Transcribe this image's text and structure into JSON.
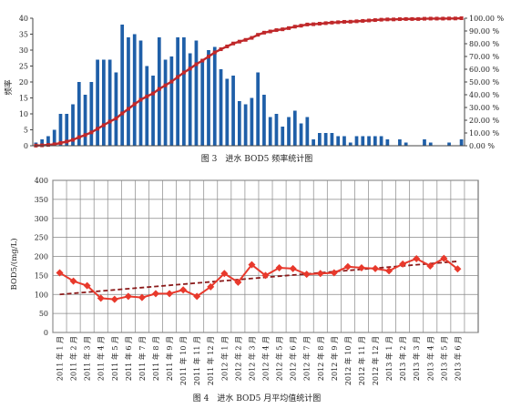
{
  "chart_data": [
    {
      "type": "bar",
      "caption": "图 3　进水 BOD5 频率统计图",
      "ylabel": "频率",
      "ylim": [
        0,
        40
      ],
      "yticks": [
        0,
        5,
        10,
        15,
        20,
        25,
        30,
        35,
        40
      ],
      "y2lim": [
        0,
        100
      ],
      "y2ticks": [
        "0.00 %",
        "10.00 %",
        "20.00 %",
        "30.00 %",
        "40.00 %",
        "50.00 %",
        "60.00 %",
        "70.00 %",
        "80.00 %",
        "90.00 %",
        "100.00 %"
      ],
      "legend": "none",
      "grid": false,
      "colors": {
        "bars": "#1f5fa8",
        "cumulative": "#c0282a"
      },
      "values": [
        1,
        2,
        3,
        5,
        10,
        10,
        13,
        20,
        16,
        20,
        27,
        27,
        27,
        23,
        38,
        34,
        35,
        33,
        25,
        22,
        34,
        27,
        28,
        34,
        34,
        29,
        33,
        27,
        30,
        31,
        24,
        21,
        22,
        14,
        13,
        15,
        23,
        16,
        9,
        10,
        6,
        9,
        11,
        7,
        9,
        2,
        4,
        4,
        4,
        3,
        3,
        1,
        3,
        3,
        3,
        3,
        3,
        2,
        0,
        2,
        1,
        0,
        0,
        2,
        1,
        0,
        0,
        1,
        0,
        2
      ]
    },
    {
      "type": "line",
      "caption": "图 4　进水 BOD5 月平均值统计图",
      "ylabel": "BOD5/(mg/L)",
      "ylim": [
        0,
        400
      ],
      "yticks": [
        0,
        50,
        100,
        150,
        200,
        250,
        300,
        350,
        400
      ],
      "grid": true,
      "legend": "none",
      "colors": {
        "series": "#e8392c",
        "trend": "#8b1a1a"
      },
      "categories": [
        "2011 年 1 月",
        "2011 年 2 月",
        "2011 年 3 月",
        "2011 年 4 月",
        "2011 年 5 月",
        "2011 年 6 月",
        "2011 年 7 月",
        "2011 年 8 月",
        "2011 年 9 月",
        "2011 年 10 月",
        "2011 年 11 月",
        "2011 年 12 月",
        "2012 年 1 月",
        "2012 年 2 月",
        "2012 年 3 月",
        "2012 年 4 月",
        "2012 年 5 月",
        "2012 年 6 月",
        "2012 年 7 月",
        "2012 年 8 月",
        "2012 年 9 月",
        "2012 年 10 月",
        "2012 年 11 月",
        "2012 年 12 月",
        "2013 年 1 月",
        "2013 年 2 月",
        "2013 年 3 月",
        "2013 年 4 月",
        "2013 年 5 月",
        "2013 年 6 月"
      ],
      "values": [
        157,
        135,
        123,
        90,
        87,
        95,
        92,
        102,
        102,
        112,
        95,
        120,
        155,
        132,
        178,
        150,
        170,
        168,
        153,
        155,
        157,
        173,
        170,
        168,
        162,
        180,
        194,
        175,
        195,
        167
      ],
      "trend": {
        "start": 100,
        "end": 187
      }
    }
  ]
}
